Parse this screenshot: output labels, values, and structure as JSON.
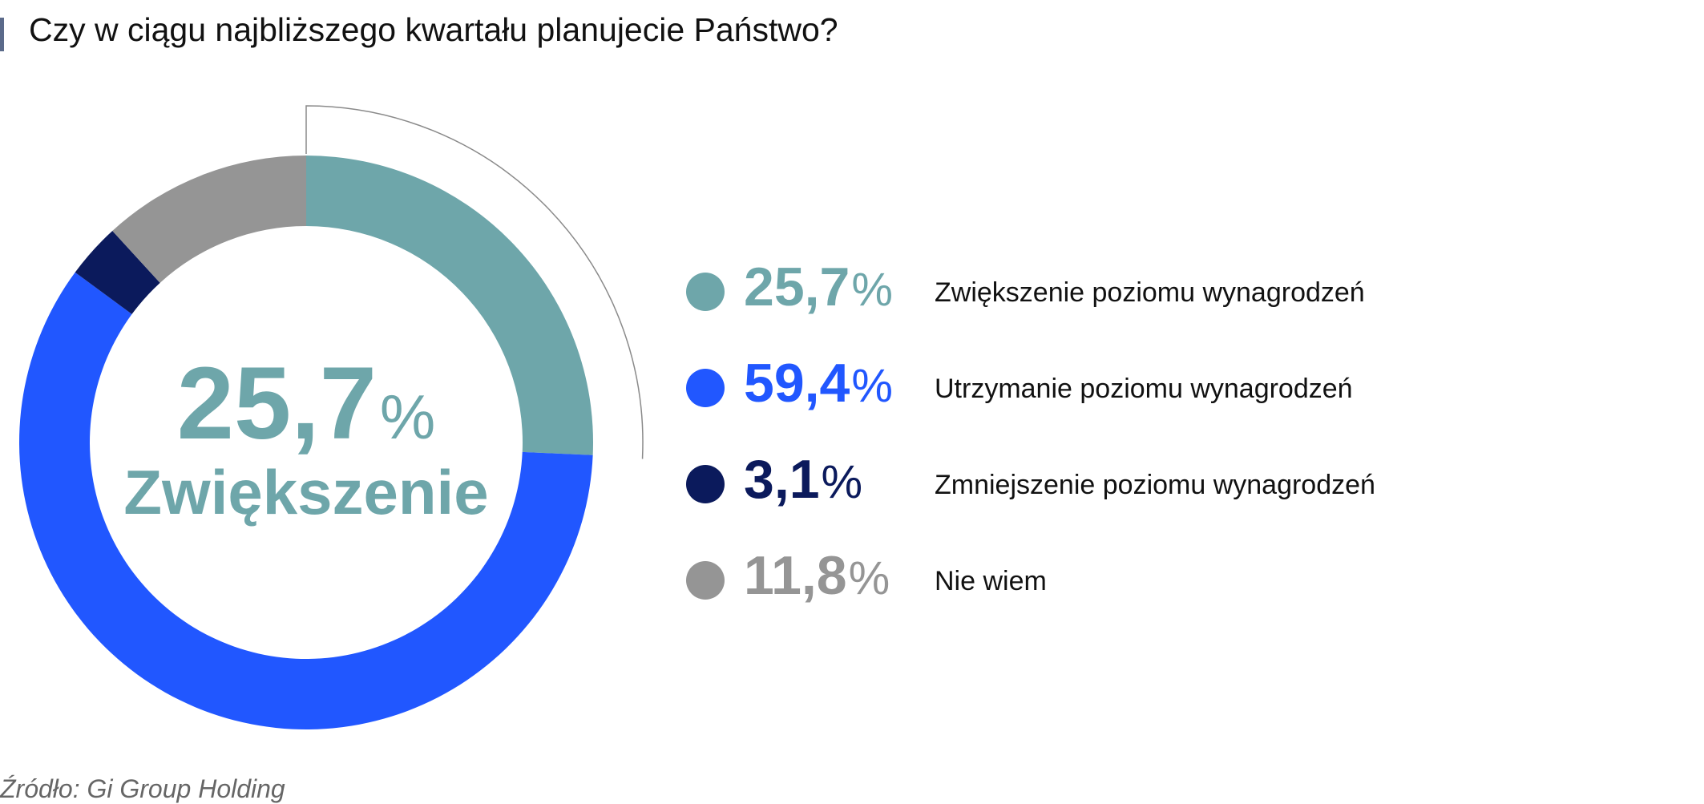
{
  "title": "Czy w ciągu najbliższego kwartału planujecie Państwo?",
  "center": {
    "value": "25,7",
    "unit": "%",
    "label": "Zwiększenie",
    "color": "#6ea6aa"
  },
  "source": "Źródło: Gi Group Holding",
  "chart_data": {
    "type": "pie",
    "variant": "donut",
    "highlighted_slice": 0,
    "slices": [
      {
        "label": "Zwiększenie poziomu wynagrodzeń",
        "value": 25.7,
        "display": "25,7",
        "color": "#6ea6aa"
      },
      {
        "label": "Utrzymanie poziomu wynagrodzeń",
        "value": 59.4,
        "display": "59,4",
        "color": "#2157ff"
      },
      {
        "label": "Zmniejszenie poziomu wynagrodzeń",
        "value": 3.1,
        "display": "3,1",
        "color": "#0b1a5c"
      },
      {
        "label": "Nie wiem",
        "value": 11.8,
        "display": "11,8",
        "color": "#959595"
      }
    ],
    "unit": "%",
    "legend_position": "right"
  }
}
